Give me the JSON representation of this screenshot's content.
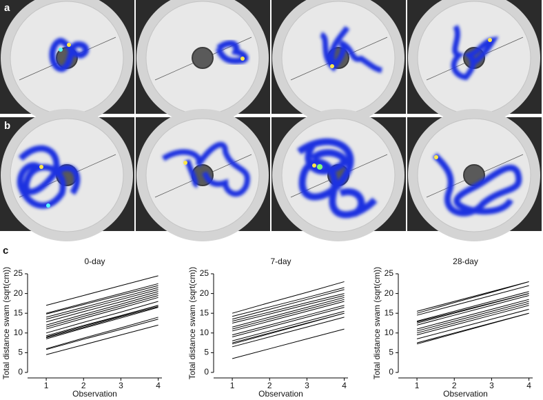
{
  "panel_labels": [
    "a",
    "b",
    "c"
  ],
  "chart_data": [
    {
      "type": "line",
      "title": "0-day",
      "x_label": "Observation",
      "y_label": "Total distance swam (sqrt(cm))",
      "x": [
        1,
        2,
        3,
        4
      ],
      "xlim": [
        0.5,
        4.1
      ],
      "xticks": [
        1,
        2,
        3,
        4
      ],
      "ylim": [
        0,
        25
      ],
      "yticks": [
        0,
        5,
        10,
        15,
        20,
        25
      ],
      "color": "#000000",
      "series": [
        {
          "values": [
            4.5,
            7,
            9.5,
            12
          ]
        },
        {
          "values": [
            5.8,
            8.4,
            10.9,
            13.5
          ]
        },
        {
          "values": [
            6,
            8.7,
            11.3,
            14
          ]
        },
        {
          "values": [
            8.5,
            11.2,
            13.8,
            16.5
          ]
        },
        {
          "values": [
            8.8,
            11.4,
            14.1,
            16.7
          ]
        },
        {
          "values": [
            9,
            11.7,
            14.3,
            17
          ]
        },
        {
          "values": [
            9.3,
            11.9,
            14.4,
            17
          ]
        },
        {
          "values": [
            10,
            12.7,
            15.3,
            18
          ]
        },
        {
          "values": [
            11,
            13.7,
            16.3,
            19
          ]
        },
        {
          "values": [
            11.5,
            14.2,
            16.8,
            19.5
          ]
        },
        {
          "values": [
            12,
            14.7,
            17.3,
            20
          ]
        },
        {
          "values": [
            12.8,
            15.4,
            17.9,
            20.5
          ]
        },
        {
          "values": [
            13.5,
            16,
            18.5,
            21
          ]
        },
        {
          "values": [
            14,
            16.5,
            19,
            21.5
          ]
        },
        {
          "values": [
            14.8,
            17.2,
            19.6,
            22
          ]
        },
        {
          "values": [
            15,
            17.5,
            20,
            22.5
          ]
        },
        {
          "values": [
            17,
            19.5,
            22,
            24.5
          ]
        }
      ]
    },
    {
      "type": "line",
      "title": "7-day",
      "x_label": "Observation",
      "y_label": "Total distance swam (sqrt(cm))",
      "x": [
        1,
        2,
        3,
        4
      ],
      "xlim": [
        0.5,
        4.1
      ],
      "xticks": [
        1,
        2,
        3,
        4
      ],
      "ylim": [
        0,
        25
      ],
      "yticks": [
        0,
        5,
        10,
        15,
        20,
        25
      ],
      "color": "#000000",
      "series": [
        {
          "values": [
            3.5,
            6,
            8.5,
            11
          ]
        },
        {
          "values": [
            6.5,
            9,
            11.5,
            14
          ]
        },
        {
          "values": [
            7.2,
            9.8,
            12.4,
            15
          ]
        },
        {
          "values": [
            7.5,
            10,
            12.5,
            15
          ]
        },
        {
          "values": [
            8,
            10.5,
            13,
            15.5
          ]
        },
        {
          "values": [
            9,
            11.5,
            14,
            16.5
          ]
        },
        {
          "values": [
            9.5,
            12,
            14.5,
            17
          ]
        },
        {
          "values": [
            10.5,
            13,
            15.5,
            18
          ]
        },
        {
          "values": [
            11,
            13.5,
            16,
            18.5
          ]
        },
        {
          "values": [
            11.5,
            14,
            16.5,
            19
          ]
        },
        {
          "values": [
            12.5,
            14.8,
            17.2,
            19.5
          ]
        },
        {
          "values": [
            13,
            15.3,
            17.7,
            20
          ]
        },
        {
          "values": [
            13.5,
            16,
            18.5,
            21
          ]
        },
        {
          "values": [
            14.2,
            16.6,
            19,
            21.5
          ]
        },
        {
          "values": [
            15,
            17.7,
            20.3,
            23
          ]
        }
      ]
    },
    {
      "type": "line",
      "title": "28-day",
      "x_label": "Observation",
      "y_label": "Total distance swam (sqrt(cm))",
      "x": [
        1,
        2,
        3,
        4
      ],
      "xlim": [
        0.5,
        4.1
      ],
      "xticks": [
        1,
        2,
        3,
        4
      ],
      "ylim": [
        0,
        25
      ],
      "yticks": [
        0,
        5,
        10,
        15,
        20,
        25
      ],
      "color": "#000000",
      "series": [
        {
          "values": [
            7.2,
            9.8,
            12.4,
            15
          ]
        },
        {
          "values": [
            7.5,
            10,
            12.5,
            15
          ]
        },
        {
          "values": [
            8.5,
            11,
            13.5,
            16
          ]
        },
        {
          "values": [
            9.5,
            12,
            14.5,
            17
          ]
        },
        {
          "values": [
            10,
            12.5,
            15,
            17.5
          ]
        },
        {
          "values": [
            10.5,
            13,
            15.5,
            18
          ]
        },
        {
          "values": [
            11,
            13.5,
            16,
            18.5
          ]
        },
        {
          "values": [
            12,
            14.5,
            17,
            19.5
          ]
        },
        {
          "values": [
            12.5,
            15,
            17.5,
            20
          ]
        },
        {
          "values": [
            12.8,
            15.2,
            17.6,
            20
          ]
        },
        {
          "values": [
            13,
            15.5,
            18,
            20.5
          ]
        },
        {
          "values": [
            14.5,
            17,
            19.5,
            22
          ]
        },
        {
          "values": [
            15,
            17.7,
            20.3,
            23
          ]
        },
        {
          "values": [
            15.5,
            18,
            20.5,
            23
          ]
        }
      ]
    }
  ]
}
